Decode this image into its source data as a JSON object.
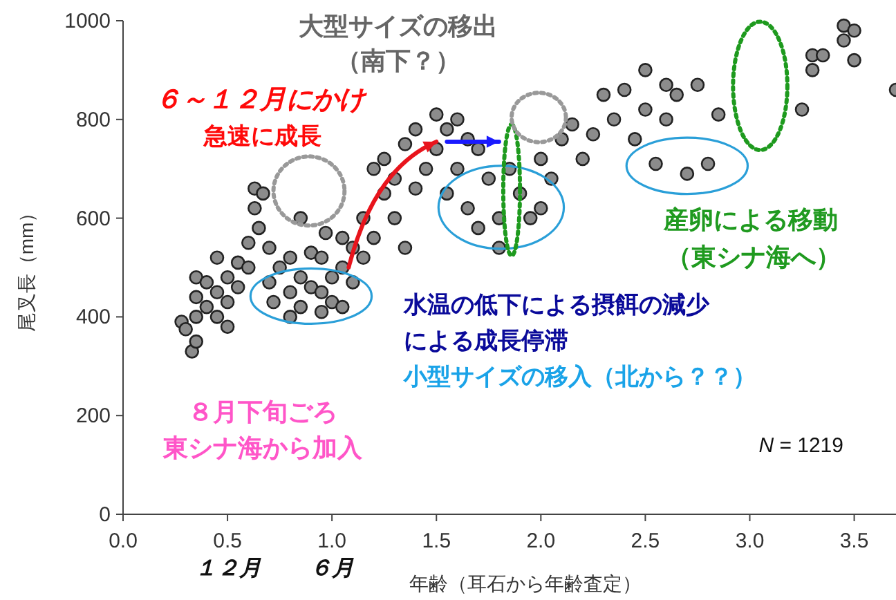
{
  "chart_data": {
    "type": "scatter",
    "xlabel": "年齢（耳石から年齢査定）",
    "ylabel": "尾叉長（mm）",
    "xlim": [
      0,
      3.7
    ],
    "ylim": [
      0,
      1000
    ],
    "xticks": [
      {
        "value": 0,
        "label": "0.0"
      },
      {
        "value": 0.5,
        "label": "0.5"
      },
      {
        "value": 1,
        "label": "1.0"
      },
      {
        "value": 1.5,
        "label": "1.5"
      },
      {
        "value": 2,
        "label": "2.0"
      },
      {
        "value": 2.5,
        "label": "2.5"
      },
      {
        "value": 3,
        "label": "3.0"
      },
      {
        "value": 3.5,
        "label": "3.5"
      }
    ],
    "yticks": [
      0,
      200,
      400,
      600,
      800,
      1000
    ],
    "grid": false,
    "marker": "circle",
    "series": [
      {
        "color": "#8c8c8c",
        "x": [
          0.28,
          0.3,
          0.33,
          0.35,
          0.35,
          0.35,
          0.35,
          0.4,
          0.4,
          0.45,
          0.45,
          0.45,
          0.5,
          0.5,
          0.5,
          0.55,
          0.55,
          0.6,
          0.6,
          0.63,
          0.63,
          0.65,
          0.67,
          0.7,
          0.7,
          0.72,
          0.75,
          0.8,
          0.8,
          0.8,
          0.85,
          0.85,
          0.85,
          0.9,
          0.9,
          0.95,
          0.95,
          0.95,
          0.97,
          1.0,
          1.0,
          1.05,
          1.05,
          1.05,
          1.1,
          1.1,
          1.15,
          1.15,
          1.2,
          1.2,
          1.25,
          1.25,
          1.3,
          1.3,
          1.35,
          1.35,
          1.4,
          1.4,
          1.45,
          1.5,
          1.5,
          1.55,
          1.55,
          1.6,
          1.6,
          1.65,
          1.65,
          1.7,
          1.7,
          1.75,
          1.8,
          1.8,
          1.85,
          1.9,
          1.95,
          2.0,
          2.0,
          2.05,
          2.1,
          2.15,
          2.2,
          2.25,
          2.3,
          2.35,
          2.4,
          2.45,
          2.5,
          2.5,
          2.55,
          2.6,
          2.6,
          2.65,
          2.7,
          2.75,
          2.8,
          2.85,
          3.25,
          3.3,
          3.3,
          3.35,
          3.45,
          3.45,
          3.5,
          3.5,
          3.7
        ],
        "values": [
          390,
          375,
          330,
          350,
          400,
          440,
          480,
          470,
          420,
          400,
          520,
          450,
          380,
          430,
          480,
          510,
          460,
          550,
          500,
          620,
          660,
          580,
          650,
          540,
          470,
          430,
          500,
          400,
          450,
          520,
          600,
          480,
          420,
          530,
          460,
          410,
          450,
          520,
          570,
          430,
          480,
          420,
          500,
          560,
          470,
          540,
          520,
          600,
          700,
          560,
          650,
          720,
          600,
          680,
          540,
          750,
          660,
          780,
          700,
          810,
          740,
          650,
          780,
          800,
          700,
          620,
          760,
          740,
          580,
          680,
          600,
          540,
          700,
          650,
          600,
          720,
          620,
          680,
          760,
          790,
          720,
          770,
          850,
          800,
          860,
          760,
          900,
          820,
          710,
          870,
          800,
          850,
          690,
          870,
          710,
          810,
          820,
          900,
          930,
          930,
          960,
          990,
          920,
          980,
          860
        ]
      }
    ],
    "annotations": [
      "大型サイズの移出",
      "（南下？）",
      "６～１２月にかけ",
      "急速に成長",
      "産卵による移動",
      "（東シナ海へ）",
      "水温の低下による摂餌の減少",
      "による成長停滞",
      "小型サイズの移入（北から？？）",
      "８月下旬ごろ",
      "東シナ海から加入",
      "N = 1219",
      "１２月",
      "６月"
    ]
  }
}
